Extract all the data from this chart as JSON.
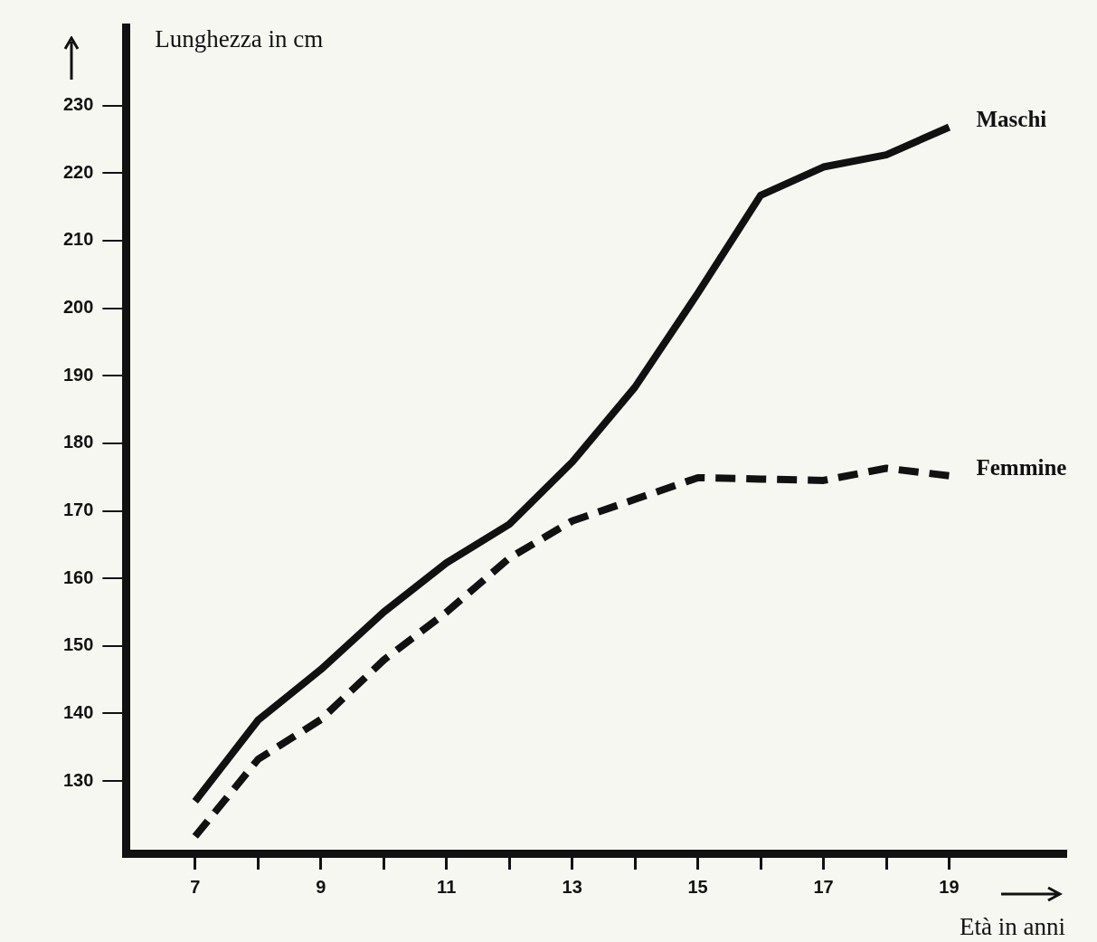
{
  "chart_data": {
    "type": "line",
    "ylabel": "Lunghezza in cm",
    "xlabel": "Età in anni",
    "x": [
      7,
      8,
      9,
      10,
      11,
      12,
      13,
      14,
      15,
      16,
      17,
      18,
      19
    ],
    "series": [
      {
        "name": "Maschi",
        "color": "#111111",
        "line_style": "solid",
        "values": [
          127,
          139,
          146.5,
          155,
          162.3,
          168,
          177.2,
          188.3,
          202.2,
          216.7,
          220.9,
          222.7,
          226.8
        ]
      },
      {
        "name": "Femmine",
        "color": "#111111",
        "line_style": "dashed",
        "values": [
          121.8,
          133.2,
          139.1,
          147.9,
          155,
          163,
          168.5,
          171.7,
          174.9,
          174.7,
          174.5,
          176.3,
          175.2
        ]
      }
    ],
    "xlim": [
      5.9,
      20.85
    ],
    "ylim": [
      119.3,
      241.6
    ],
    "xticks": [
      7,
      {
        "value": 8,
        "label": null
      },
      9,
      {
        "value": 10,
        "label": null
      },
      11,
      {
        "value": 12,
        "label": null
      },
      13,
      {
        "value": 14,
        "label": null
      },
      15,
      {
        "value": 16,
        "label": null
      },
      17,
      {
        "value": 18,
        "label": null
      },
      19
    ],
    "yticks": [
      130,
      140,
      150,
      160,
      170,
      180,
      190,
      200,
      210,
      220,
      230
    ],
    "grid": false,
    "legend": false,
    "marker": "none"
  }
}
